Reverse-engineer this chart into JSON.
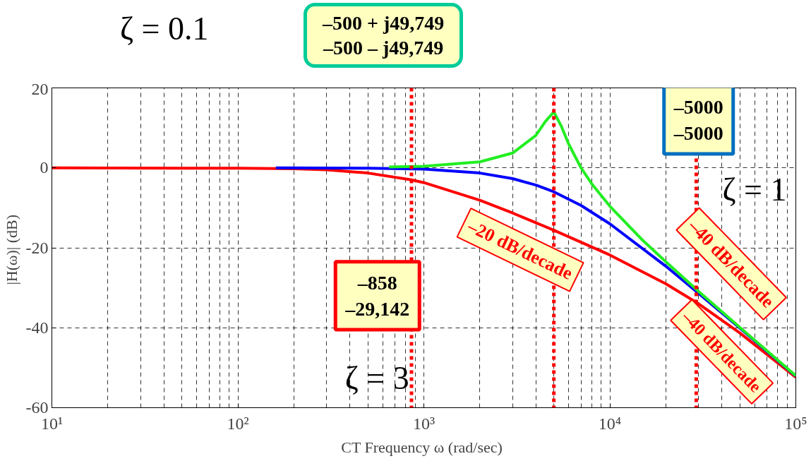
{
  "chart_data": {
    "type": "line",
    "xlabel": "CT Frequency ω  (rad/sec)",
    "ylabel": "|H(ω)|  (dB)",
    "log": "x",
    "xlim": [
      10,
      100000
    ],
    "ylim": [
      -60,
      20
    ],
    "xticks": [
      {
        "value": 10,
        "label": "10¹"
      },
      {
        "value": 100,
        "label": "10²"
      },
      {
        "value": 1000,
        "label": "10³"
      },
      {
        "value": 10000,
        "label": "10⁴"
      },
      {
        "value": 100000,
        "label": "10⁵"
      }
    ],
    "yticks": [
      -60,
      -40,
      -20,
      0,
      20
    ],
    "grid": true,
    "legend": false,
    "line_style": "solid",
    "marker": "none",
    "series": [
      {
        "color": "#ff0000",
        "x": [
          10,
          100,
          200,
          300,
          500,
          858,
          1000,
          2000,
          3000,
          5000,
          10000,
          20000,
          30000,
          50000,
          100000
        ],
        "values": [
          0,
          -0.1,
          -0.2,
          -0.5,
          -1.3,
          -3.0,
          -3.7,
          -8.1,
          -11.3,
          -15.6,
          -21.8,
          -29.0,
          -34.0,
          -41.3,
          -52.4
        ]
      },
      {
        "color": "#0000ff",
        "x": [
          160,
          500,
          1000,
          2000,
          3000,
          4000,
          5000,
          7000,
          10000,
          20000,
          30000,
          50000,
          100000
        ],
        "values": [
          0,
          -0.1,
          -0.3,
          -1.3,
          -2.7,
          -4.3,
          -6.0,
          -9.4,
          -14.0,
          -24.6,
          -31.4,
          -40.1,
          -52.1
        ]
      },
      {
        "color": "#22ee22",
        "x": [
          650,
          1000,
          2000,
          3000,
          4000,
          4500,
          5000,
          5500,
          6000,
          7000,
          8000,
          10000,
          15000,
          20000,
          30000,
          50000,
          100000
        ],
        "values": [
          0.2,
          0.4,
          1.5,
          3.7,
          8.1,
          11.6,
          14.0,
          10.3,
          6.0,
          0,
          -4.0,
          -9.6,
          -18.1,
          -23.5,
          -30.9,
          -39.9,
          -52.0
        ]
      }
    ],
    "ref_lines": [
      {
        "axis": "x",
        "value": 858,
        "color": "#ff0000",
        "line_style": "dotted"
      },
      {
        "axis": "x",
        "value": 5000,
        "color": "#ff0000",
        "line_style": "dotted"
      },
      {
        "axis": "x",
        "value": 29142,
        "color": "#ff0000",
        "line_style": "dotted"
      }
    ],
    "annotations": [
      "ζ = 0.1",
      "ζ = 1",
      "ζ = 3",
      "–500 + j49,749\n–500 – j49,749",
      "–5000\n–5000",
      "–858\n–29,142",
      "–20 dB/decade",
      "–40 dB/decade",
      "–40 dB/decade"
    ]
  }
}
